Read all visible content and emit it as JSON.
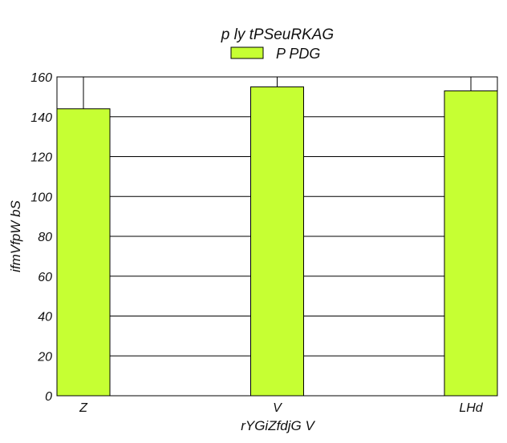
{
  "chart_data": {
    "type": "bar",
    "title": "p ly tPSeuRKAG",
    "xlabel": "rYGiZfdjG V",
    "ylabel": "ifmVfpW bS",
    "categories": [
      "Z",
      "V",
      "LHd"
    ],
    "series": [
      {
        "name": "P PDG",
        "values": [
          144,
          155,
          153
        ],
        "color": "#c6ff33"
      }
    ],
    "ylim": [
      0,
      160
    ],
    "yticks": [
      0,
      20,
      40,
      60,
      80,
      100,
      120,
      140,
      160
    ],
    "grid": "horizontal",
    "legend_position": "top-center"
  }
}
